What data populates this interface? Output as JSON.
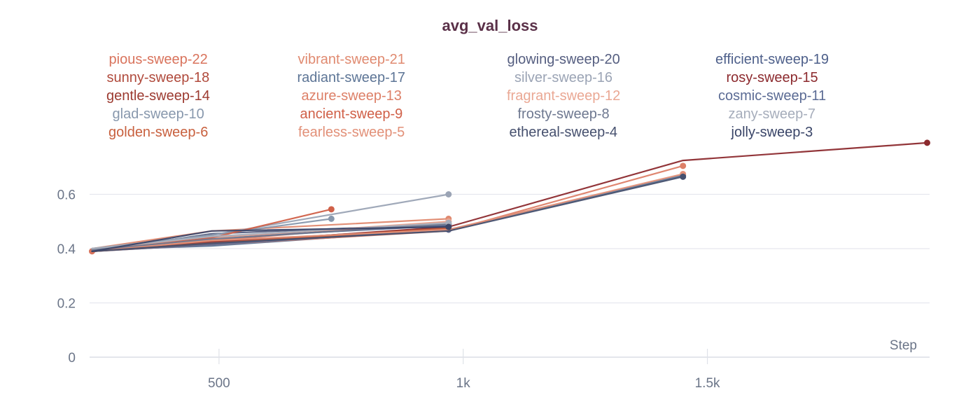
{
  "chart_data": {
    "type": "line",
    "title": "avg_val_loss",
    "xlabel": "Step",
    "ylabel": "",
    "xlim": [
      235,
      1955
    ],
    "ylim": [
      0,
      0.8
    ],
    "x_ticks": [
      500,
      1000,
      1500
    ],
    "x_tick_labels": [
      "500",
      "1k",
      "1.5k"
    ],
    "y_ticks": [
      0,
      0.2,
      0.4,
      0.6
    ],
    "y_tick_labels": [
      "0",
      "0.2",
      "0.4",
      "0.6"
    ],
    "grid": true,
    "legend_placement": "top",
    "series": [
      {
        "name": "pious-sweep-22",
        "color": "#d9735c",
        "x": [
          240,
          485,
          970
        ],
        "y": [
          0.39,
          0.43,
          0.5
        ]
      },
      {
        "name": "vibrant-sweep-21",
        "color": "#e08a70",
        "x": [
          240,
          485,
          970
        ],
        "y": [
          0.4,
          0.465,
          0.51
        ]
      },
      {
        "name": "glowing-sweep-20",
        "color": "#555e80",
        "x": [
          240,
          485,
          970
        ],
        "y": [
          0.39,
          0.455,
          0.49
        ]
      },
      {
        "name": "efficient-sweep-19",
        "color": "#4d5f8a",
        "x": [
          240,
          485,
          970
        ],
        "y": [
          0.395,
          0.44,
          0.485
        ]
      },
      {
        "name": "sunny-sweep-18",
        "color": "#b04a3c",
        "x": [
          240,
          485,
          970
        ],
        "y": [
          0.39,
          0.42,
          0.47
        ]
      },
      {
        "name": "radiant-sweep-17",
        "color": "#5d7596",
        "x": [
          240,
          485,
          970,
          1450
        ],
        "y": [
          0.395,
          0.41,
          0.47,
          0.67
        ]
      },
      {
        "name": "silver-sweep-16",
        "color": "#9ba4b5",
        "x": [
          240,
          485,
          970
        ],
        "y": [
          0.4,
          0.45,
          0.6
        ]
      },
      {
        "name": "rosy-sweep-15",
        "color": "#8c2a2e",
        "x": [
          240,
          485,
          970,
          1450,
          1950
        ],
        "y": [
          0.39,
          0.42,
          0.48,
          0.725,
          0.79
        ]
      },
      {
        "name": "gentle-sweep-14",
        "color": "#9c3a30",
        "x": [
          240,
          485,
          970
        ],
        "y": [
          0.39,
          0.425,
          0.475
        ]
      },
      {
        "name": "azure-sweep-13",
        "color": "#dd8068",
        "x": [
          240,
          485,
          970,
          1450
        ],
        "y": [
          0.39,
          0.415,
          0.465,
          0.705
        ]
      },
      {
        "name": "fragrant-sweep-12",
        "color": "#eaa894",
        "x": [
          240,
          485,
          970
        ],
        "y": [
          0.395,
          0.44,
          0.5
        ]
      },
      {
        "name": "cosmic-sweep-11",
        "color": "#5b6b94",
        "x": [
          240,
          485,
          970
        ],
        "y": [
          0.39,
          0.415,
          0.47
        ]
      },
      {
        "name": "glad-sweep-10",
        "color": "#8898ad",
        "x": [
          240,
          485,
          730
        ],
        "y": [
          0.4,
          0.45,
          0.51
        ]
      },
      {
        "name": "ancient-sweep-9",
        "color": "#d06048",
        "x": [
          240,
          485,
          730
        ],
        "y": [
          0.39,
          0.44,
          0.545
        ]
      },
      {
        "name": "frosty-sweep-8",
        "color": "#6e7890",
        "x": [
          240,
          485,
          970
        ],
        "y": [
          0.395,
          0.435,
          0.49
        ]
      },
      {
        "name": "zany-sweep-7",
        "color": "#a6adbb",
        "x": [
          240,
          485,
          970
        ],
        "y": [
          0.4,
          0.445,
          0.495
        ]
      },
      {
        "name": "golden-sweep-6",
        "color": "#c8603e",
        "x": [
          240,
          485,
          970
        ],
        "y": [
          0.39,
          0.42,
          0.475
        ]
      },
      {
        "name": "fearless-sweep-5",
        "color": "#e29078",
        "x": [
          240,
          485,
          970,
          1450
        ],
        "y": [
          0.39,
          0.43,
          0.47,
          0.675
        ]
      },
      {
        "name": "ethereal-sweep-4",
        "color": "#46506e",
        "x": [
          240,
          485,
          970,
          1450
        ],
        "y": [
          0.39,
          0.42,
          0.465,
          0.665
        ]
      },
      {
        "name": "jolly-sweep-3",
        "color": "#3a4568",
        "x": [
          240,
          485,
          970
        ],
        "y": [
          0.39,
          0.465,
          0.48
        ]
      }
    ]
  }
}
